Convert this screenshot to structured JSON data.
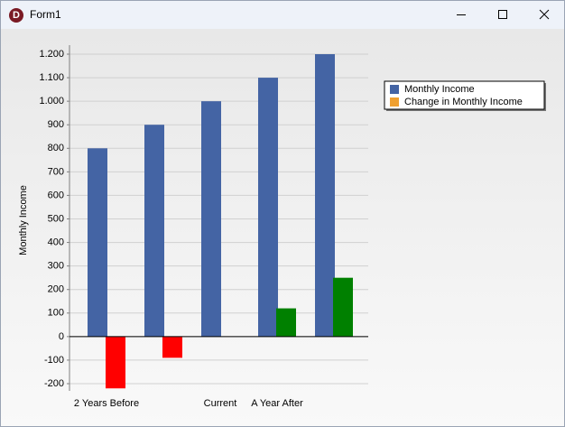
{
  "window": {
    "title": "Form1",
    "icon": "D"
  },
  "chart_data": {
    "type": "bar",
    "y_label": "Monthly Income",
    "categories": [
      "2 Years Before",
      null,
      "Current",
      "A Year After",
      null
    ],
    "series": [
      {
        "name": "Monthly Income",
        "color": "#4464a4",
        "values": [
          800,
          900,
          1000,
          1100,
          1200
        ]
      },
      {
        "name": "Change in Monthly Income",
        "color": "#f0a030",
        "point_colors": [
          "#ff0000",
          "#ff0000",
          "#008000",
          "#008000",
          "#008000"
        ],
        "values": [
          -220,
          -90,
          0,
          120,
          250
        ]
      }
    ],
    "ylim": [
      -200,
      1200
    ],
    "yticks": [
      {
        "value": -200,
        "label": "-200"
      },
      {
        "value": -100,
        "label": "-100"
      },
      0,
      100,
      200,
      300,
      400,
      500,
      600,
      700,
      800,
      900,
      {
        "value": 1000,
        "label": "1.000"
      },
      {
        "value": 1100,
        "label": "1.100"
      },
      {
        "value": 1200,
        "label": "1.200"
      }
    ],
    "grid": true,
    "legend": "right"
  }
}
